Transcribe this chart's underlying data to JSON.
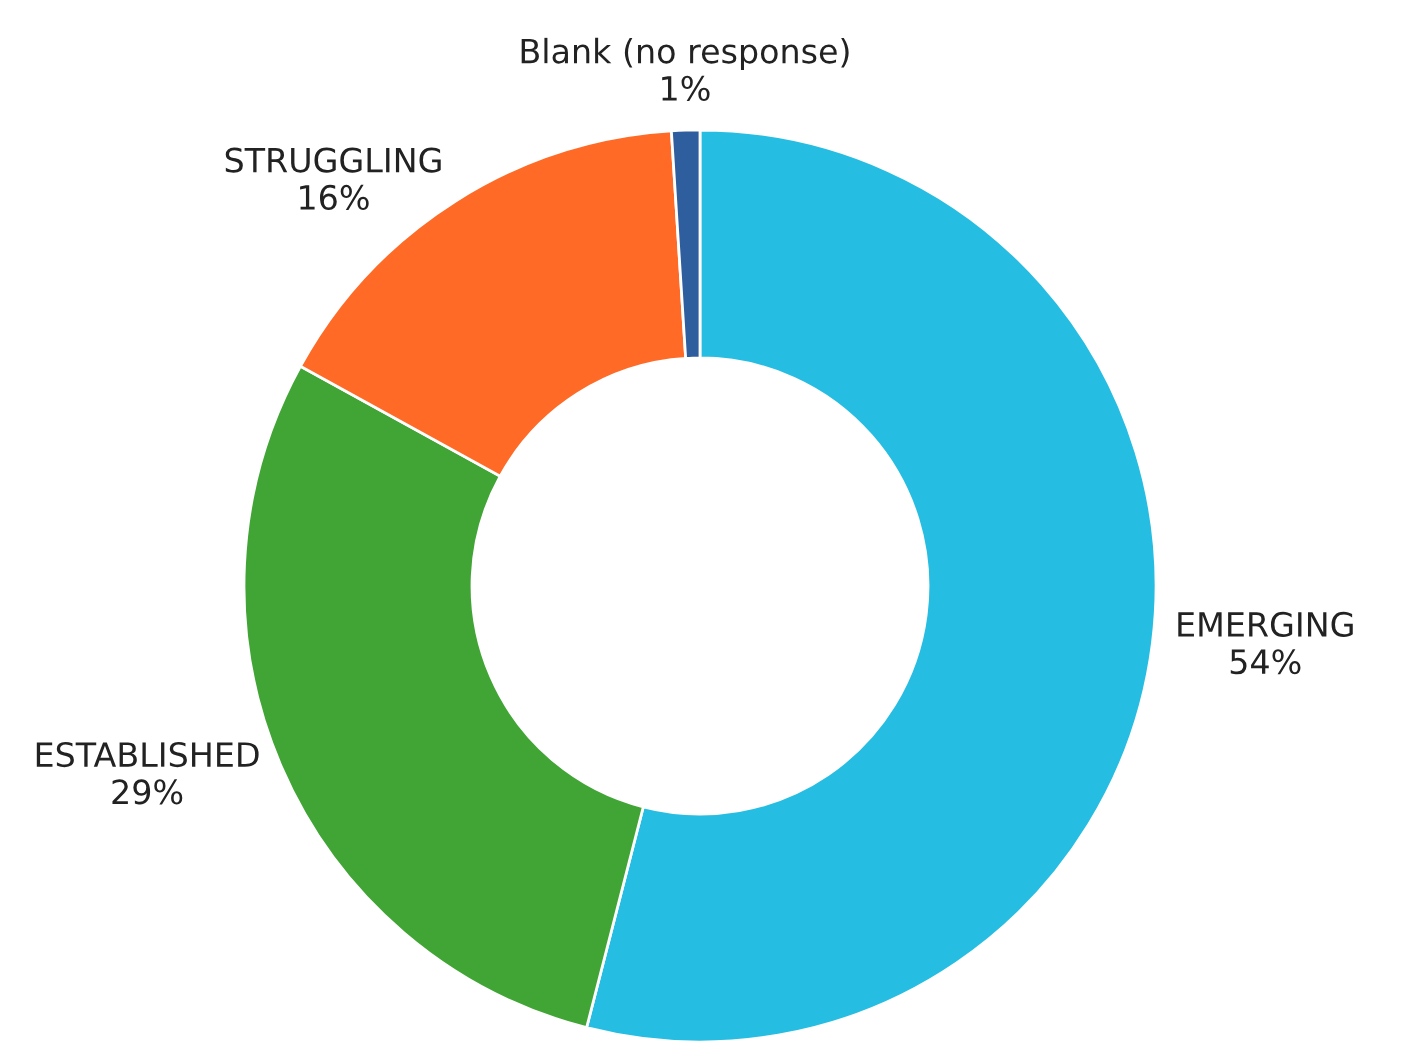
{
  "chart_data": {
    "type": "donut",
    "categories": [
      "EMERGING",
      "ESTABLISHED",
      "STRUGGLING",
      "Blank (no response)"
    ],
    "values": [
      54,
      29,
      16,
      1
    ],
    "value_labels": [
      "54%",
      "29%",
      "16%",
      "1%"
    ],
    "colors": [
      "#26bde2",
      "#41a535",
      "#ff6a26",
      "#2e5e9e"
    ],
    "legend": false
  }
}
